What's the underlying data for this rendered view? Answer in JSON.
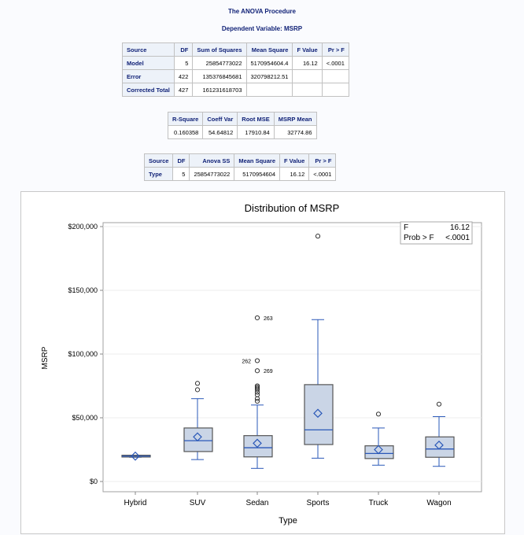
{
  "title": "The ANOVA Procedure",
  "subtitle": "Dependent Variable: MSRP",
  "anova": {
    "headers": [
      "Source",
      "DF",
      "Sum of Squares",
      "Mean Square",
      "F Value",
      "Pr > F"
    ],
    "rows": [
      [
        "Model",
        "5",
        "25854773022",
        "5170954604.4",
        "16.12",
        "<.0001"
      ],
      [
        "Error",
        "422",
        "135376845681",
        "320798212.51",
        "",
        ""
      ],
      [
        "Corrected Total",
        "427",
        "161231618703",
        "",
        "",
        ""
      ]
    ]
  },
  "fit": {
    "headers": [
      "R-Square",
      "Coeff Var",
      "Root MSE",
      "MSRP Mean"
    ],
    "row": [
      "0.160358",
      "54.64812",
      "17910.84",
      "32774.86"
    ]
  },
  "type3": {
    "headers": [
      "Source",
      "DF",
      "Anova SS",
      "Mean Square",
      "F Value",
      "Pr > F"
    ],
    "row": [
      "Type",
      "5",
      "25854773022",
      "5170954604",
      "16.12",
      "<.0001"
    ]
  },
  "chart_data": {
    "type": "box",
    "title": "Distribution of MSRP",
    "xlabel": "Type",
    "ylabel": "MSRP",
    "ylim": [
      0,
      200000
    ],
    "yticks": [
      {
        "v": 0,
        "label": "$0"
      },
      {
        "v": 50000,
        "label": "$50,000"
      },
      {
        "v": 100000,
        "label": "$100,000"
      },
      {
        "v": 150000,
        "label": "$150,000"
      },
      {
        "v": 200000,
        "label": "$200,000"
      }
    ],
    "inset": {
      "f_label": "F",
      "f_value": "16.12",
      "p_label": "Prob > F",
      "p_value": "<.0001"
    },
    "categories": [
      "Hybrid",
      "SUV",
      "Sedan",
      "Sports",
      "Truck",
      "Wagon"
    ],
    "boxes": [
      {
        "min": 19000,
        "q1": 19200,
        "median": 19900,
        "q3": 20600,
        "max": 20600,
        "mean": 19900,
        "outliers": []
      },
      {
        "min": 17200,
        "q1": 23500,
        "median": 32000,
        "q3": 42000,
        "max": 65000,
        "mean": 35000,
        "outliers": [
          72000,
          77000
        ]
      },
      {
        "min": 10300,
        "q1": 19300,
        "median": 26500,
        "q3": 36000,
        "max": 60000,
        "mean": 30000,
        "outliers": [
          63000,
          65000,
          68000,
          70000,
          72000,
          73000,
          74000,
          75000,
          86900,
          94800,
          128400
        ]
      },
      {
        "min": 18300,
        "q1": 29000,
        "median": 40500,
        "q3": 76000,
        "max": 127000,
        "mean": 53500,
        "outliers": [
          192500
        ]
      },
      {
        "min": 12800,
        "q1": 18000,
        "median": 22000,
        "q3": 28000,
        "max": 42000,
        "mean": 25000,
        "outliers": [
          52900
        ]
      },
      {
        "min": 11900,
        "q1": 19000,
        "median": 25500,
        "q3": 35000,
        "max": 50900,
        "mean": 28500,
        "outliers": [
          60700
        ]
      }
    ],
    "labels": [
      {
        "cat": "Sedan",
        "v": 128400,
        "text": "263",
        "side": "right"
      },
      {
        "cat": "Sedan",
        "v": 94800,
        "text": "262",
        "side": "left"
      },
      {
        "cat": "Sedan",
        "v": 86900,
        "text": "269",
        "side": "right"
      }
    ]
  }
}
